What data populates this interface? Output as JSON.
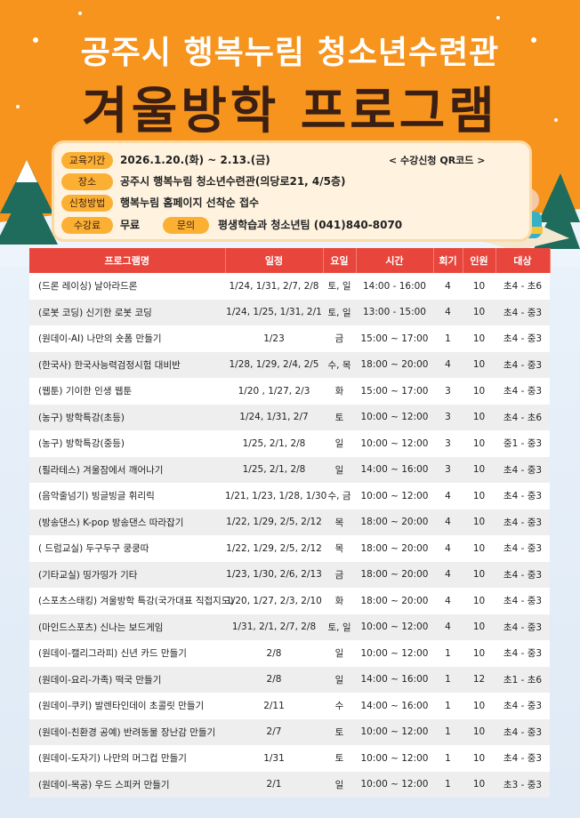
{
  "header": {
    "subtitle": "공주시 행복누림 청소년수련관",
    "title": "겨울방학 프로그램"
  },
  "info": {
    "period_label": "교육기간",
    "period": "2026.1.20.(화) ~ 2.13.(금)",
    "qr_note": "< 수강신청 QR코드 >",
    "place_label": "장소",
    "place": "공주시 행복누림 청소년수련관(의당로21, 4/5층)",
    "method_label": "신청방법",
    "method": "행복누림 홈페이지 선착순 접수",
    "fee_label": "수강료",
    "fee": "무료",
    "contact_label": "문의",
    "contact": "평생학습과 청소년팀 (041)840-8070"
  },
  "table": {
    "headers": [
      "프로그램명",
      "일정",
      "요일",
      "시간",
      "회기",
      "인원",
      "대상"
    ],
    "rows": [
      [
        "(드론 레이싱) 날아라드론",
        "1/24, 1/31, 2/7, 2/8",
        "토, 일",
        "14:00 - 16:00",
        "4",
        "10",
        "초4 - 초6"
      ],
      [
        "(로봇 코딩) 신기한 로봇 코딩",
        "1/24, 1/25, 1/31, 2/1",
        "토, 일",
        "13:00 - 15:00",
        "4",
        "10",
        "초4 - 중3"
      ],
      [
        "(원데이-AI) 나만의 숏폼 만들기",
        "1/23",
        "금",
        "15:00 ~ 17:00",
        "1",
        "10",
        "초4 - 중3"
      ],
      [
        "(한국사) 한국사능력검정시험 대비반",
        "1/28, 1/29, 2/4, 2/5",
        "수, 목",
        "18:00 ~ 20:00",
        "4",
        "10",
        "초4 - 중3"
      ],
      [
        "(웹툰) 기이한 인생 웹툰",
        "1/20 , 1/27, 2/3",
        "화",
        "15:00 ~ 17:00",
        "3",
        "10",
        "초4 - 중3"
      ],
      [
        "(농구) 방학특강(초등)",
        "1/24, 1/31, 2/7",
        "토",
        "10:00 ~ 12:00",
        "3",
        "10",
        "초4 - 초6"
      ],
      [
        "(농구) 방학특강(중등)",
        "1/25, 2/1, 2/8",
        "일",
        "10:00 ~ 12:00",
        "3",
        "10",
        "중1 - 중3"
      ],
      [
        "(필라테스) 겨울잠에서 깨어나기",
        "1/25, 2/1, 2/8",
        "일",
        "14:00 ~ 16:00",
        "3",
        "10",
        "초4 - 중3"
      ],
      [
        "(음악줄넘기) 빙글빙글 휘리릭",
        "1/21, 1/23, 1/28, 1/30",
        "수, 금",
        "10:00 ~ 12:00",
        "4",
        "10",
        "초4 - 중3"
      ],
      [
        "(방송댄스) K-pop 방송댄스 따라잡기",
        "1/22, 1/29, 2/5, 2/12",
        "목",
        "18:00 ~ 20:00",
        "4",
        "10",
        "초4 - 중3"
      ],
      [
        "( 드럼교실) 두구두구 쿵쿵따",
        "1/22, 1/29, 2/5, 2/12",
        "목",
        "18:00 ~ 20:00",
        "4",
        "10",
        "초4 - 중3"
      ],
      [
        "(기타교실) 띵가띵가 기타",
        "1/23, 1/30, 2/6, 2/13",
        "금",
        "18:00 ~ 20:00",
        "4",
        "10",
        "초4 - 중3"
      ],
      [
        "(스포츠스태킹) 겨울방학 특강(국가대표 직접지도)",
        "1/20, 1/27, 2/3, 2/10",
        "화",
        "18:00 ~ 20:00",
        "4",
        "10",
        "초4 - 중3"
      ],
      [
        "(마인드스포츠) 신나는 보드게임",
        "1/31, 2/1, 2/7, 2/8",
        "토, 일",
        "10:00 ~ 12:00",
        "4",
        "10",
        "초4 - 중3"
      ],
      [
        "(원데이-캘리그라피) 신년 카드 만들기",
        "2/8",
        "일",
        "10:00 ~ 12:00",
        "1",
        "10",
        "초4 - 중3"
      ],
      [
        "(원데이-요리-가족) 떡국 만들기",
        "2/8",
        "일",
        "14:00 ~ 16:00",
        "1",
        "12",
        "초1 - 초6"
      ],
      [
        "(원데이-쿠키) 발렌타인데이 초콜릿 만들기",
        "2/11",
        "수",
        "14:00 ~ 16:00",
        "1",
        "10",
        "초4 - 중3"
      ],
      [
        "(원데이-친환경 공예) 반려동물 장난감 만들기",
        "2/7",
        "토",
        "10:00 ~ 12:00",
        "1",
        "10",
        "초4 - 중3"
      ],
      [
        "(원데이-도자기) 나만의 머그컵 만들기",
        "1/31",
        "토",
        "10:00 ~ 12:00",
        "1",
        "10",
        "초4 - 중3"
      ],
      [
        "(원데이-목공) 우드 스피커 만들기",
        "2/1",
        "일",
        "10:00 ~ 12:00",
        "1",
        "10",
        "초3 - 중3"
      ]
    ]
  }
}
